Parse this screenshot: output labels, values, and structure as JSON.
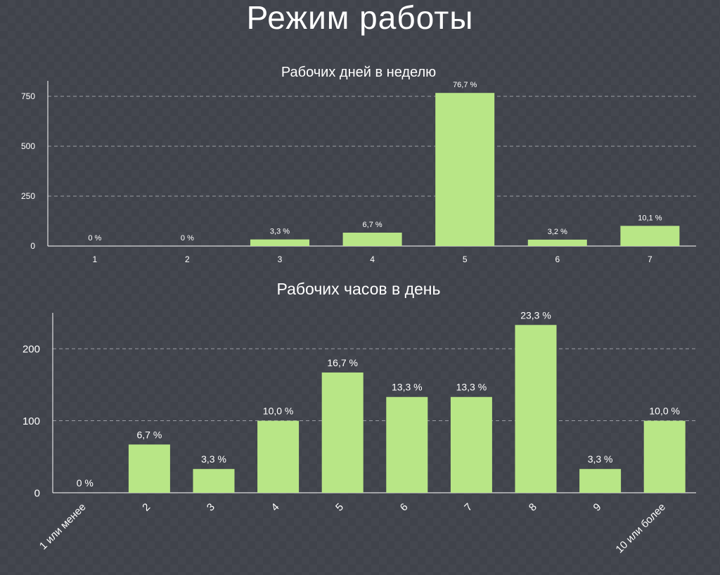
{
  "page": {
    "title": "Режим работы"
  },
  "colors": {
    "background": "#40434b",
    "bar": "#b8e686",
    "axis": "#ffffff",
    "grid": "#9a9ca3"
  },
  "chart_data": [
    {
      "type": "bar",
      "title": "Рабочих дней в неделю",
      "xlabel": "",
      "ylabel": "",
      "categories": [
        "1",
        "2",
        "3",
        "4",
        "5",
        "6",
        "7"
      ],
      "values": [
        0,
        0,
        33,
        67,
        767,
        32,
        101
      ],
      "data_labels": [
        "0 %",
        "0 %",
        "3,3 %",
        "6,7 %",
        "76,7 %",
        "3,2 %",
        "10,1 %"
      ],
      "yticks": [
        0,
        250,
        500,
        750
      ],
      "ylim": [
        0,
        810
      ],
      "grid": true,
      "legend": "none"
    },
    {
      "type": "bar",
      "title": "Рабочих часов в день",
      "xlabel": "",
      "ylabel": "",
      "categories": [
        "1 или менее",
        "2",
        "3",
        "4",
        "5",
        "6",
        "7",
        "8",
        "9",
        "10 или более"
      ],
      "values": [
        0,
        67,
        33,
        100,
        167,
        133,
        133,
        233,
        33,
        100
      ],
      "data_labels": [
        "0 %",
        "6,7 %",
        "3,3 %",
        "10,0 %",
        "16,7 %",
        "13,3 %",
        "13,3 %",
        "23,3 %",
        "3,3 %",
        "10,0 %"
      ],
      "yticks": [
        0,
        100,
        200
      ],
      "ylim": [
        0,
        245
      ],
      "grid": true,
      "legend": "none",
      "rotated_tick_labels": true
    }
  ]
}
